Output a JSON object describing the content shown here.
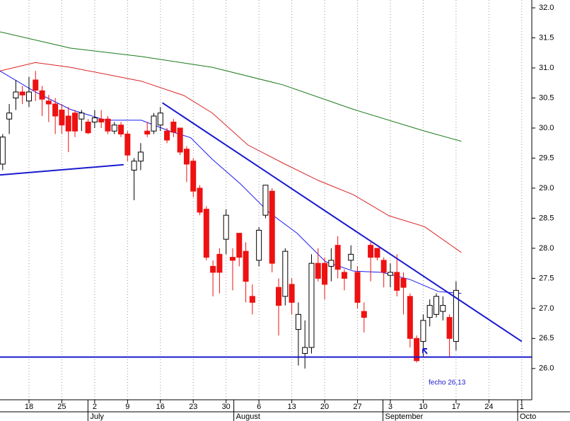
{
  "chart_data": {
    "type": "candlestick",
    "xlim": [
      -0.41,
      80.53
    ],
    "ylim": [
      25.48,
      32.13
    ],
    "xticks": [
      {
        "value": 4,
        "label": "18"
      },
      {
        "value": 9,
        "label": "25"
      },
      {
        "value": 14,
        "label": "2"
      },
      {
        "value": 19,
        "label": "9"
      },
      {
        "value": 24,
        "label": "16"
      },
      {
        "value": 29,
        "label": "23"
      },
      {
        "value": 34,
        "label": "30"
      },
      {
        "value": 39,
        "label": "6"
      },
      {
        "value": 44,
        "label": "13"
      },
      {
        "value": 49,
        "label": "20"
      },
      {
        "value": 54,
        "label": "27"
      },
      {
        "value": 59,
        "label": "3"
      },
      {
        "value": 64,
        "label": "10"
      },
      {
        "value": 69,
        "label": "17"
      },
      {
        "value": 74,
        "label": "24"
      },
      {
        "value": 79,
        "label": "1"
      }
    ],
    "months": [
      {
        "value": 13.3,
        "label": "July"
      },
      {
        "value": 35.5,
        "label": "August"
      },
      {
        "value": 58.2,
        "label": "September"
      },
      {
        "value": 78.7,
        "label": "Octo"
      }
    ],
    "yticks": [
      {
        "value": 26,
        "label": "26.0"
      },
      {
        "value": 26.5,
        "label": "26.5"
      },
      {
        "value": 27,
        "label": "27.0"
      },
      {
        "value": 27.5,
        "label": "27.5"
      },
      {
        "value": 28,
        "label": "28.0"
      },
      {
        "value": 28.5,
        "label": "28.5"
      },
      {
        "value": 29,
        "label": "29.0"
      },
      {
        "value": 29.5,
        "label": "29.5"
      },
      {
        "value": 30,
        "label": "30.0"
      },
      {
        "value": 30.5,
        "label": "30.5"
      },
      {
        "value": 31,
        "label": "31.0"
      },
      {
        "value": 31.5,
        "label": "31.5"
      },
      {
        "value": 32,
        "label": "32.0"
      }
    ],
    "grid": true,
    "up_color": "#ffffff",
    "down_color": "#ee1111",
    "open": [
      29.4,
      30.15,
      30.5,
      30.6,
      30.45,
      30.8,
      30.62,
      30.45,
      30.4,
      30.3,
      30.2,
      30.25,
      30.15,
      30.1,
      30.1,
      30.15,
      30.15,
      29.95,
      30.05,
      29.9,
      29.3,
      29.45,
      29.95,
      29.95,
      30.05,
      29.95,
      30.1,
      30.0,
      29.65,
      29.45,
      29.0,
      28.65,
      27.7,
      27.9,
      28.15,
      27.85,
      28.25,
      27.95,
      27.2,
      27.8,
      28.55,
      28.95,
      27.35,
      27.2,
      27.4,
      26.65,
      26.25,
      26.35,
      27.75,
      27.75,
      27.7,
      28.05,
      27.6,
      27.8,
      27.6,
      26.95,
      28.05,
      28.0,
      27.8,
      27.55,
      27.6,
      27.5,
      27.2,
      26.5,
      26.45,
      26.85,
      26.9,
      26.95,
      26.85,
      26.45
    ],
    "high": [
      29.9,
      30.4,
      30.8,
      30.7,
      30.85,
      30.95,
      30.7,
      30.55,
      30.5,
      30.4,
      30.35,
      30.3,
      30.3,
      30.15,
      30.3,
      30.3,
      30.2,
      30.1,
      30.1,
      29.95,
      29.5,
      29.75,
      30.1,
      30.25,
      30.35,
      30.0,
      30.15,
      30.0,
      29.7,
      29.5,
      29.05,
      28.7,
      27.8,
      28.0,
      28.65,
      28.0,
      28.25,
      28.1,
      27.4,
      28.35,
      29.05,
      29.0,
      27.5,
      28.0,
      27.5,
      27.1,
      26.8,
      27.9,
      28.0,
      27.85,
      28.0,
      28.2,
      27.65,
      28.05,
      27.7,
      27.1,
      28.1,
      28.0,
      27.85,
      27.75,
      27.9,
      27.6,
      27.25,
      26.55,
      26.9,
      27.15,
      27.25,
      27.2,
      26.9,
      27.45
    ],
    "low": [
      29.3,
      29.9,
      30.3,
      30.4,
      30.35,
      30.45,
      30.2,
      30.1,
      29.9,
      29.9,
      29.6,
      29.85,
      29.95,
      29.9,
      30.0,
      30.0,
      29.9,
      29.9,
      29.85,
      29.45,
      28.8,
      29.3,
      29.85,
      29.9,
      29.95,
      29.75,
      29.85,
      29.55,
      29.1,
      28.85,
      28.55,
      27.8,
      27.2,
      27.25,
      27.9,
      27.3,
      27.7,
      27.1,
      26.9,
      27.7,
      28.5,
      27.6,
      26.55,
      27.05,
      26.9,
      26.05,
      26.0,
      26.25,
      27.45,
      27.15,
      27.45,
      27.5,
      27.3,
      27.65,
      27.0,
      26.6,
      27.45,
      27.8,
      27.35,
      27.35,
      27.2,
      26.9,
      26.35,
      26.1,
      26.2,
      26.7,
      26.85,
      26.8,
      26.2,
      26.3
    ],
    "close": [
      29.85,
      30.25,
      30.6,
      30.55,
      30.6,
      30.63,
      30.48,
      30.4,
      30.2,
      30.05,
      29.95,
      29.95,
      30.25,
      29.92,
      30.17,
      30.1,
      29.95,
      30.05,
      29.9,
      29.55,
      29.45,
      29.6,
      29.9,
      30.2,
      30.25,
      29.8,
      29.93,
      29.6,
      29.4,
      28.95,
      28.6,
      27.85,
      27.6,
      27.6,
      28.55,
      27.8,
      27.85,
      27.45,
      27.1,
      28.3,
      29.05,
      27.75,
      27.05,
      27.95,
      27.1,
      26.9,
      26.35,
      27.75,
      27.5,
      27.4,
      27.8,
      27.65,
      27.5,
      27.9,
      27.1,
      26.85,
      27.85,
      27.85,
      27.6,
      27.6,
      27.3,
      27.35,
      26.5,
      26.13,
      26.8,
      27.05,
      27.2,
      27.05,
      26.5,
      27.3
    ],
    "lines": [
      {
        "color": "#1a7a1a",
        "x": [
          -0.41,
          10.3,
          21.1,
          31.9,
          42.6,
          53.4,
          64.2,
          69.8
        ],
        "values": [
          31.6,
          31.33,
          31.19,
          31.01,
          30.72,
          30.31,
          29.95,
          29.78
        ]
      },
      {
        "color": "#dd2222",
        "x": [
          -0.41,
          4.97,
          10.3,
          21.1,
          27.6,
          31.9,
          37.3,
          42.6,
          48.0,
          53.4,
          58.8,
          64.2,
          69.8
        ],
        "values": [
          30.95,
          31.09,
          31.01,
          30.78,
          30.54,
          30.25,
          29.72,
          29.42,
          29.13,
          28.89,
          28.54,
          28.36,
          27.93
        ]
      },
      {
        "color": "#1a1aee",
        "x": [
          -0.41,
          4.97,
          10.3,
          15.7,
          21.1,
          25.4,
          28.6,
          31.9,
          36.2,
          40.5,
          44.8,
          49.1,
          53.4,
          57.7,
          62.0,
          66.3,
          69.8
        ],
        "values": [
          30.95,
          30.6,
          30.31,
          30.13,
          30.13,
          29.95,
          29.84,
          29.48,
          29.07,
          28.6,
          28.25,
          27.78,
          27.62,
          27.6,
          27.48,
          27.28,
          27.25
        ]
      }
    ],
    "trendlines": [
      {
        "color": "#1a1ad0",
        "x": [
          24.3,
          79.0
        ],
        "values": [
          30.42,
          26.45
        ]
      },
      {
        "color": "#1a1ad0",
        "x": [
          -0.41,
          18.4
        ],
        "values": [
          29.22,
          29.39
        ]
      },
      {
        "color": "#1a1ad0",
        "x": [
          -0.41,
          80.53
        ],
        "values": [
          26.19,
          26.19
        ]
      }
    ],
    "annotation": "fecho 26,13"
  }
}
